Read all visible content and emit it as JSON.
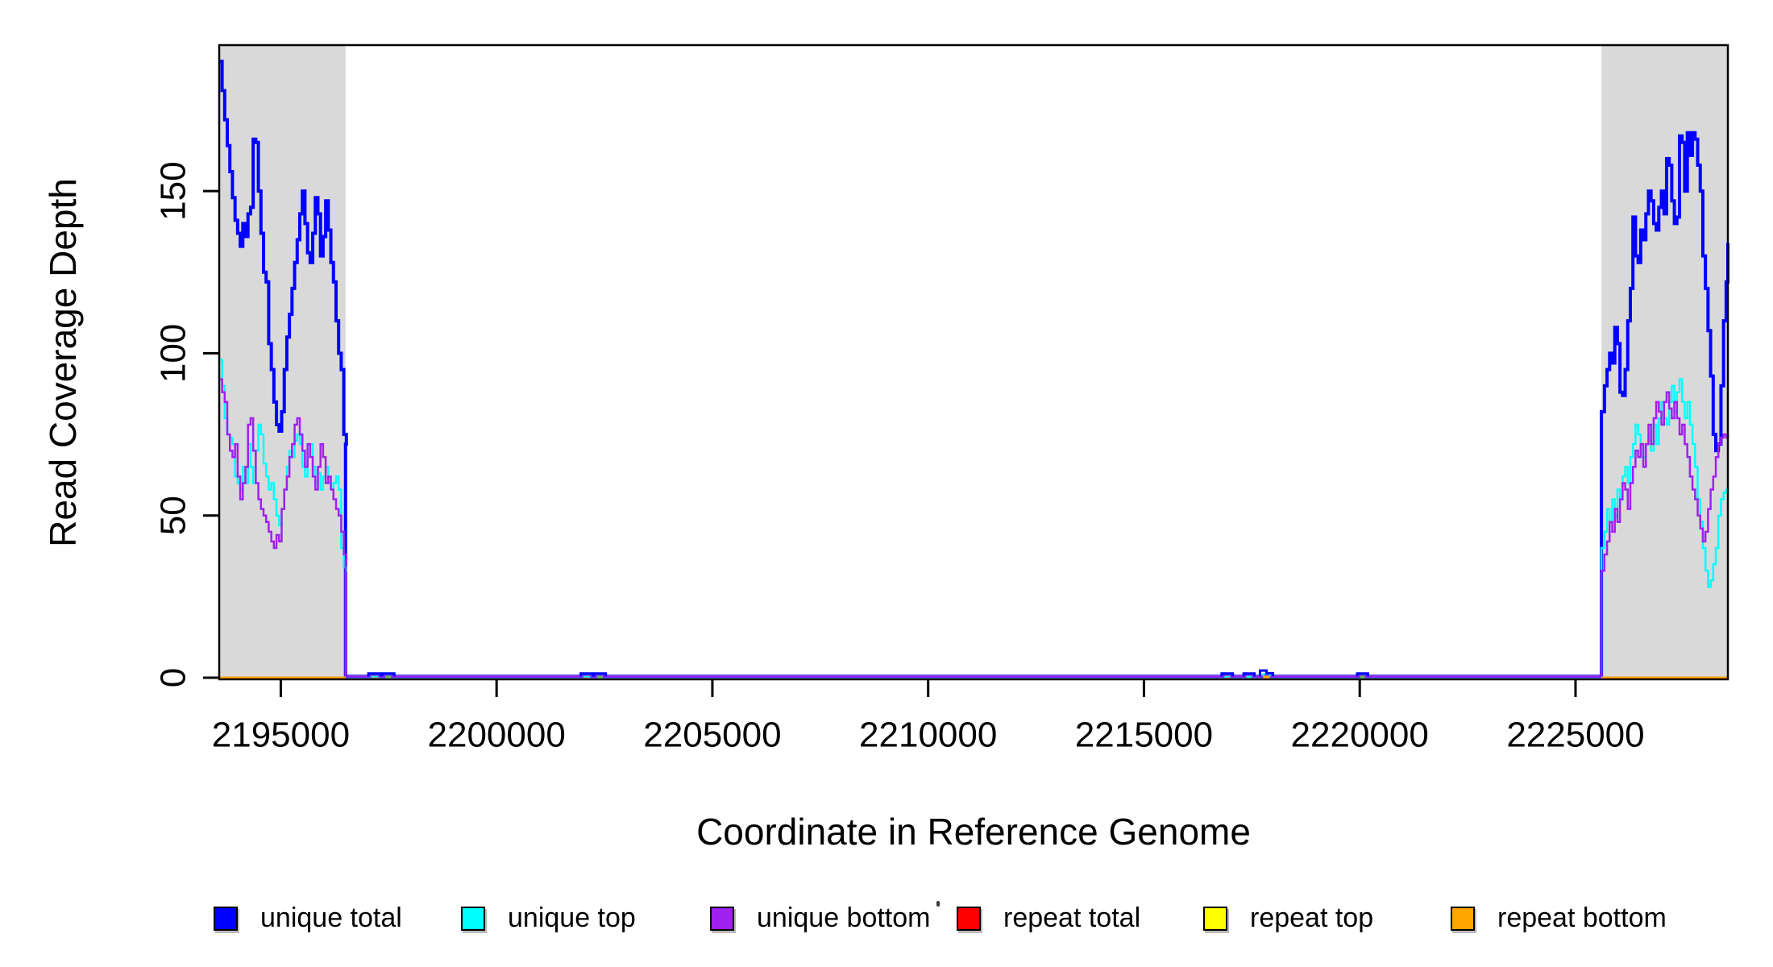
{
  "figure": {
    "kind": "coverage-depth-plot",
    "background": "#FFFFFF"
  },
  "y_axis": {
    "title": "Read Coverage Depth"
  },
  "x_axis": {
    "title": "Coordinate in Reference Genome"
  },
  "legend": [
    {
      "label": "unique total",
      "color": "#0000FF"
    },
    {
      "label": "unique top",
      "color": "#00FFFF"
    },
    {
      "label": "unique bottom",
      "color": "#A020F0"
    },
    {
      "label": "repeat total",
      "color": "#FF0000"
    },
    {
      "label": "repeat top",
      "color": "#FFFF00"
    },
    {
      "label": "repeat bottom",
      "color": "#FFA500"
    }
  ],
  "chart_data": {
    "type": "line",
    "subtype": "step",
    "title": "",
    "xlabel": "Coordinate in Reference Genome",
    "ylabel": "Read Coverage Depth",
    "xlim": [
      2193573,
      2228530
    ],
    "ylim": [
      0,
      195
    ],
    "grid": false,
    "legend_position": "bottom",
    "x_ticks": [
      {
        "v": 2195000,
        "label": "2195000"
      },
      {
        "v": 2200000,
        "label": "2200000"
      },
      {
        "v": 2205000,
        "label": "2205000"
      },
      {
        "v": 2210000,
        "label": "2210000"
      },
      {
        "v": 2215000,
        "label": "2215000"
      },
      {
        "v": 2220000,
        "label": "2220000"
      },
      {
        "v": 2225000,
        "label": "2225000"
      }
    ],
    "y_ticks": [
      {
        "v": 0,
        "label": "0"
      },
      {
        "v": 50,
        "label": "50"
      },
      {
        "v": 100,
        "label": "100"
      },
      {
        "v": 150,
        "label": "150"
      }
    ],
    "shaded_regions": [
      {
        "x1": 2193573,
        "x2": 2196500,
        "color": "#D9D9D9"
      },
      {
        "x1": 2225600,
        "x2": 2228530,
        "color": "#D9D9D9"
      }
    ],
    "middle_level": 0.4,
    "series": [
      {
        "name": "unique total",
        "color": "#0000FF",
        "width": 4,
        "left": {
          "x0": 2193580,
          "dx": 60,
          "values": [
            190,
            181,
            172,
            164,
            156,
            148,
            141,
            137,
            133,
            140,
            136,
            143,
            145,
            166,
            165,
            150,
            137,
            125,
            122,
            103,
            95,
            85,
            78,
            76,
            82,
            95,
            105,
            112,
            120,
            128,
            135,
            143,
            150,
            140,
            131,
            128,
            137,
            148,
            143,
            130,
            136,
            147,
            138,
            128,
            122,
            110,
            100,
            95,
            75,
            72
          ]
        },
        "right": {
          "x0": 2225610,
          "dx": 60,
          "values": [
            82,
            90,
            95,
            100,
            97,
            108,
            103,
            88,
            87,
            95,
            110,
            120,
            142,
            130,
            128,
            138,
            135,
            143,
            150,
            147,
            140,
            138,
            145,
            150,
            143,
            160,
            158,
            147,
            140,
            142,
            167,
            165,
            150,
            168,
            161,
            168,
            166,
            158,
            150,
            130,
            120,
            107,
            93,
            75,
            70,
            72,
            90,
            110,
            122,
            134
          ]
        }
      },
      {
        "name": "unique top",
        "color": "#00FFFF",
        "width": 2.5,
        "left": {
          "x0": 2193580,
          "dx": 60,
          "values": [
            98,
            90,
            80,
            75,
            74,
            72,
            62,
            60,
            58,
            65,
            60,
            72,
            65,
            60,
            70,
            78,
            75,
            66,
            62,
            58,
            60,
            55,
            50,
            47,
            52,
            58,
            65,
            70,
            68,
            73,
            75,
            72,
            65,
            62,
            68,
            72,
            65,
            60,
            63,
            58,
            62,
            65,
            60,
            58,
            60,
            62,
            58,
            40,
            34,
            33
          ]
        },
        "right": {
          "x0": 2225610,
          "dx": 60,
          "values": [
            40,
            45,
            52,
            48,
            55,
            50,
            58,
            55,
            62,
            65,
            60,
            68,
            72,
            78,
            75,
            70,
            68,
            72,
            75,
            70,
            78,
            72,
            80,
            85,
            80,
            78,
            85,
            90,
            82,
            88,
            92,
            85,
            80,
            85,
            78,
            72,
            65,
            55,
            48,
            40,
            33,
            28,
            30,
            35,
            40,
            50,
            55,
            57,
            58,
            57
          ]
        }
      },
      {
        "name": "unique bottom",
        "color": "#A020F0",
        "width": 2.5,
        "left": {
          "x0": 2193580,
          "dx": 60,
          "values": [
            92,
            88,
            85,
            75,
            70,
            68,
            72,
            62,
            55,
            60,
            65,
            78,
            80,
            70,
            60,
            55,
            52,
            50,
            48,
            45,
            42,
            40,
            44,
            42,
            52,
            58,
            62,
            68,
            72,
            78,
            80,
            75,
            70,
            65,
            72,
            68,
            62,
            58,
            65,
            72,
            68,
            60,
            62,
            58,
            55,
            52,
            50,
            45,
            38,
            36
          ]
        },
        "right": {
          "x0": 2225610,
          "dx": 60,
          "values": [
            33,
            38,
            42,
            48,
            45,
            52,
            48,
            55,
            60,
            58,
            52,
            60,
            65,
            70,
            68,
            72,
            65,
            72,
            78,
            72,
            80,
            85,
            82,
            78,
            85,
            88,
            83,
            80,
            85,
            80,
            75,
            78,
            72,
            68,
            62,
            58,
            55,
            50,
            46,
            42,
            45,
            52,
            58,
            62,
            68,
            72,
            74,
            75,
            74,
            75
          ]
        }
      },
      {
        "name": "repeat total",
        "color": "#FF0000",
        "width": 3,
        "flat_value": 0,
        "extent": "shaded-regions"
      },
      {
        "name": "repeat top",
        "color": "#FFFF00",
        "width": 3,
        "flat_value": 0,
        "extent": "shaded-regions"
      },
      {
        "name": "repeat bottom",
        "color": "#FFA500",
        "width": 3,
        "flat_value": 0,
        "extent": "shaded-regions"
      }
    ],
    "bumps": [
      {
        "x1": 2197030,
        "x2": 2197320,
        "h": 1.3,
        "inner": "cyan",
        "base": "red"
      },
      {
        "x1": 2197350,
        "x2": 2197630,
        "h": 1.3,
        "inner": null,
        "base": "green"
      },
      {
        "x1": 2201950,
        "x2": 2202230,
        "h": 1.3,
        "inner": "cyan",
        "base": "red"
      },
      {
        "x1": 2202260,
        "x2": 2202530,
        "h": 1.3,
        "inner": null,
        "base": "green"
      },
      {
        "x1": 2216800,
        "x2": 2217060,
        "h": 1.3,
        "inner": "cyan",
        "base": "red"
      },
      {
        "x1": 2217310,
        "x2": 2217560,
        "h": 1.3,
        "inner": "cyan",
        "base": "green"
      },
      {
        "x1": 2217690,
        "x2": 2217990,
        "h": 2.2,
        "h2": 1.4,
        "inner": "cyan",
        "base": "orange"
      },
      {
        "x1": 2219940,
        "x2": 2220190,
        "h": 1.3,
        "inner": null,
        "base": "green"
      }
    ],
    "accent_colors": {
      "red": "#E8401C",
      "green": "#63B54A",
      "orange": "#FFA500",
      "cyan": "#00FFFF"
    },
    "axis_color": "#000000"
  }
}
